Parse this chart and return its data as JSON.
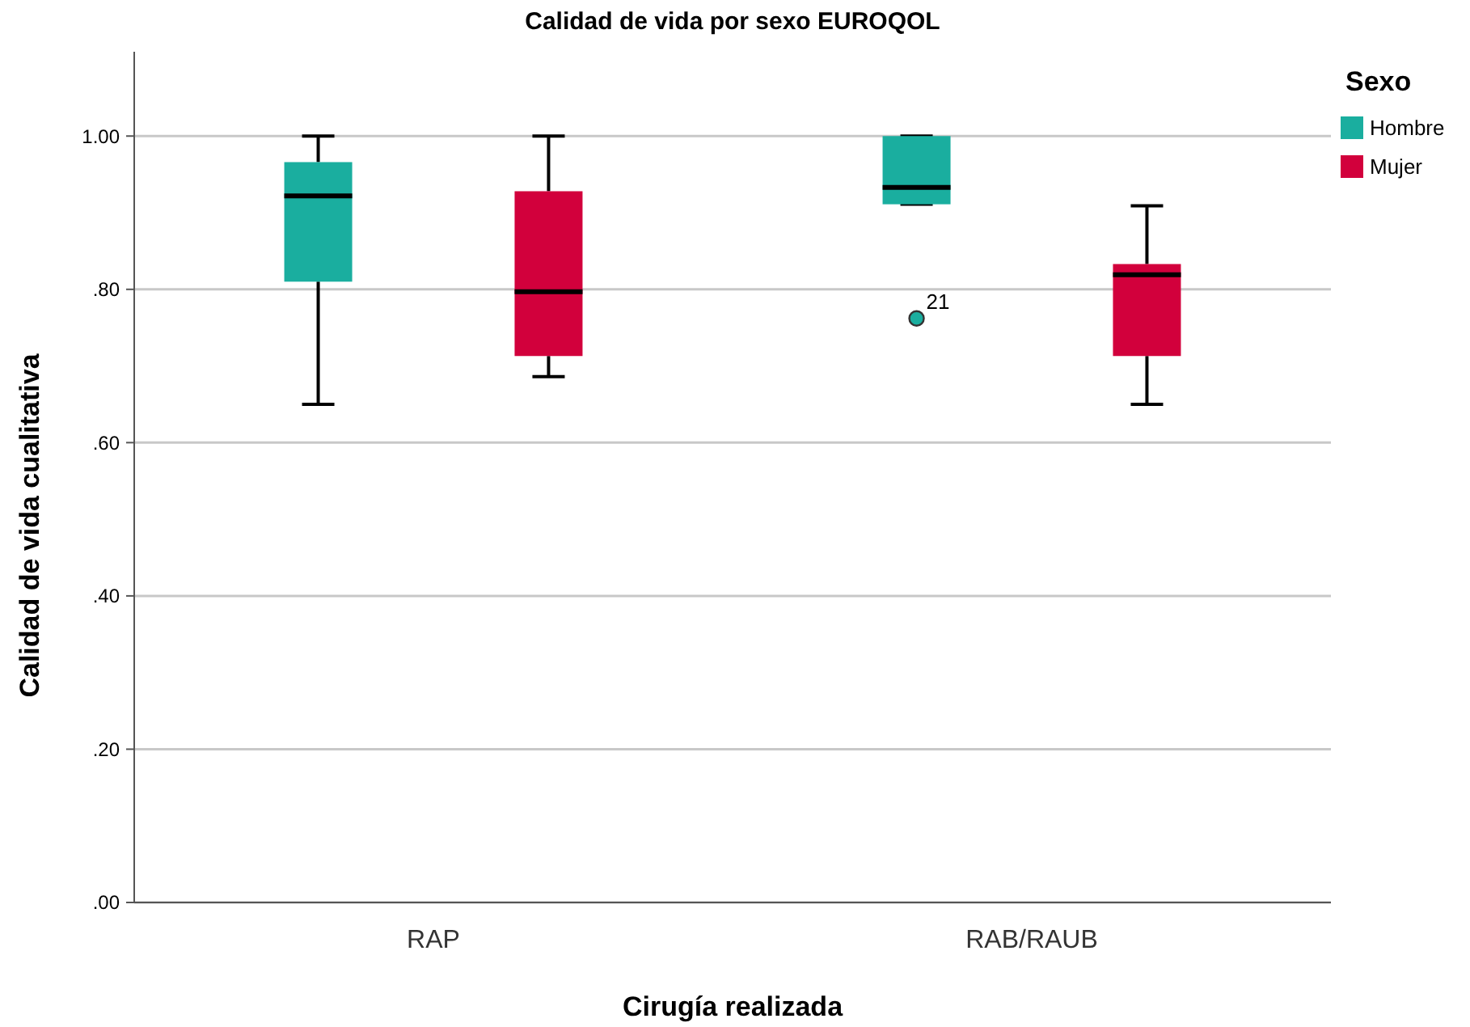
{
  "chart_data": {
    "type": "box",
    "title": "Calidad de vida por sexo EUROQOL",
    "xlabel": "Cirugía realizada",
    "ylabel": "Calidad de vida cualitativa",
    "legend_title": "Sexo",
    "categories": [
      "RAP",
      "RAB/RAUB"
    ],
    "series": [
      {
        "name": "Hombre",
        "color": "#1aae9f",
        "boxes": [
          {
            "low": 0.65,
            "q1": 0.81,
            "median": 0.922,
            "q3": 0.966,
            "high": 1.0
          },
          {
            "low": 0.911,
            "q1": 0.911,
            "median": 0.933,
            "q3": 1.0,
            "high": 1.0,
            "outliers": [
              0.762
            ]
          }
        ]
      },
      {
        "name": "Mujer",
        "color": "#d2003c",
        "boxes": [
          {
            "low": 0.686,
            "q1": 0.713,
            "median": 0.797,
            "q3": 0.928,
            "high": 1.0
          },
          {
            "low": 0.65,
            "q1": 0.713,
            "median": 0.819,
            "q3": 0.833,
            "high": 0.909
          }
        ]
      }
    ],
    "annotations": [
      "21"
    ],
    "ylim": [
      0,
      1.11
    ],
    "yticks": [
      {
        "value": 0,
        "label": ".00"
      },
      {
        "value": 0.2,
        "label": ".20"
      },
      {
        "value": 0.4,
        "label": ".40"
      },
      {
        "value": 0.6,
        "label": ".60"
      },
      {
        "value": 0.8,
        "label": ".80"
      },
      {
        "value": 1,
        "label": "1.00"
      }
    ],
    "grid": "y",
    "legend": "right"
  }
}
